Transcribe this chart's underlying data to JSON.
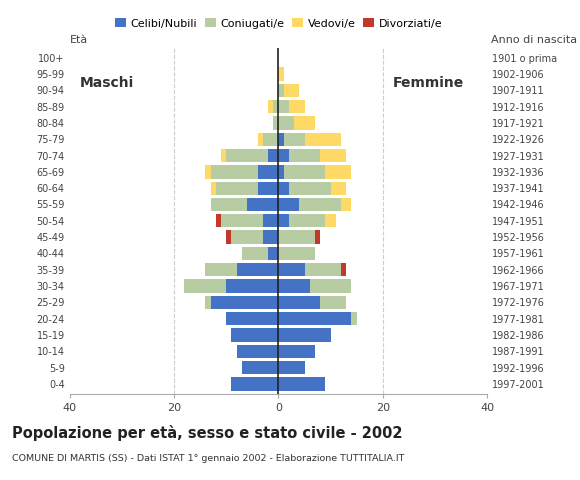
{
  "age_groups": [
    "0-4",
    "5-9",
    "10-14",
    "15-19",
    "20-24",
    "25-29",
    "30-34",
    "35-39",
    "40-44",
    "45-49",
    "50-54",
    "55-59",
    "60-64",
    "65-69",
    "70-74",
    "75-79",
    "80-84",
    "85-89",
    "90-94",
    "95-99",
    "100+"
  ],
  "birth_years": [
    "1997-2001",
    "1992-1996",
    "1987-1991",
    "1982-1986",
    "1977-1981",
    "1972-1976",
    "1967-1971",
    "1962-1966",
    "1957-1961",
    "1952-1956",
    "1947-1951",
    "1942-1946",
    "1937-1941",
    "1932-1936",
    "1927-1931",
    "1922-1926",
    "1917-1921",
    "1912-1916",
    "1907-1911",
    "1902-1906",
    "1901 o prima"
  ],
  "males": {
    "celibi": [
      9,
      7,
      8,
      9,
      10,
      13,
      10,
      8,
      2,
      3,
      3,
      6,
      4,
      4,
      2,
      0,
      0,
      0,
      0,
      0,
      0
    ],
    "coniugati": [
      0,
      0,
      0,
      0,
      0,
      1,
      8,
      6,
      5,
      6,
      8,
      7,
      8,
      9,
      8,
      3,
      1,
      1,
      0,
      0,
      0
    ],
    "vedovi": [
      0,
      0,
      0,
      0,
      0,
      0,
      0,
      0,
      0,
      0,
      0,
      0,
      1,
      1,
      1,
      1,
      0,
      1,
      0,
      0,
      0
    ],
    "divorziati": [
      0,
      0,
      0,
      0,
      0,
      0,
      0,
      0,
      0,
      1,
      1,
      0,
      0,
      0,
      0,
      0,
      0,
      0,
      0,
      0,
      0
    ]
  },
  "females": {
    "nubili": [
      9,
      5,
      7,
      10,
      14,
      8,
      6,
      5,
      0,
      0,
      2,
      4,
      2,
      1,
      2,
      1,
      0,
      0,
      0,
      0,
      0
    ],
    "coniugate": [
      0,
      0,
      0,
      0,
      1,
      5,
      8,
      7,
      7,
      7,
      7,
      8,
      8,
      8,
      6,
      4,
      3,
      2,
      1,
      0,
      0
    ],
    "vedove": [
      0,
      0,
      0,
      0,
      0,
      0,
      0,
      0,
      0,
      0,
      2,
      2,
      3,
      5,
      5,
      7,
      4,
      3,
      3,
      1,
      0
    ],
    "divorziate": [
      0,
      0,
      0,
      0,
      0,
      0,
      0,
      1,
      0,
      1,
      0,
      0,
      0,
      0,
      0,
      0,
      0,
      0,
      0,
      0,
      0
    ]
  },
  "colors": {
    "celibi": "#4472c4",
    "coniugati": "#b8cca4",
    "vedovi": "#ffd966",
    "divorziati": "#c0392b"
  },
  "xlim": 40,
  "title": "Popolazione per età, sesso e stato civile - 2002",
  "subtitle": "COMUNE DI MARTIS (SS) - Dati ISTAT 1° gennaio 2002 - Elaborazione TUTTITALIA.IT",
  "legend_labels": [
    "Celibi/Nubili",
    "Coniugati/e",
    "Vedovi/e",
    "Divorziati/e"
  ],
  "bg_color": "#ffffff",
  "grid_color": "#cccccc"
}
